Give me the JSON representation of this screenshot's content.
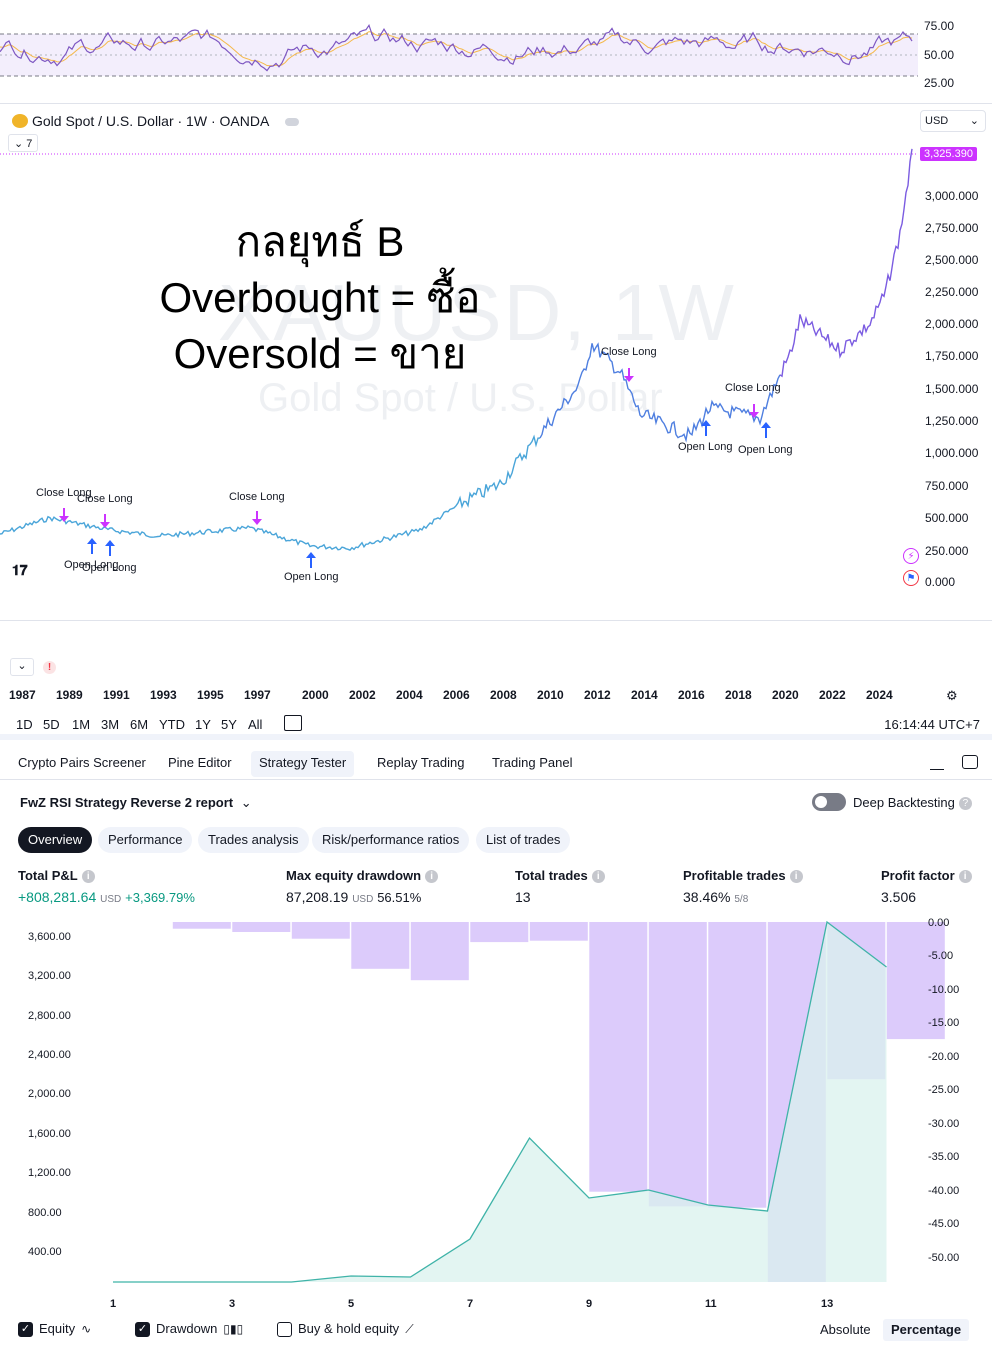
{
  "rsi": {
    "ticks": [
      "75.00",
      "50.00",
      "25.00"
    ]
  },
  "symbol": {
    "title": "Gold Spot / U.S. Dollar · 1W · OANDA",
    "currency": "USD",
    "indicators_count": "7"
  },
  "watermark": {
    "line1": "XAUUSD, 1W",
    "line2": "Gold Spot / U.S. Dollar"
  },
  "overlay": {
    "line1": "กลยุทธ์ B",
    "line2": "Overbought = ซื้อ",
    "line3": "Oversold = ขาย"
  },
  "price_axis": {
    "last_price": "3,325.390",
    "ticks": [
      "3,000.000",
      "2,750.000",
      "2,500.000",
      "2,250.000",
      "2,000.000",
      "1,750.000",
      "1,500.000",
      "1,250.000",
      "1,000.000",
      "750.000",
      "500.000",
      "250.000",
      "0.000"
    ]
  },
  "trade_labels": [
    "Close Long",
    "Close Long",
    "Close Long",
    "Close Long",
    "Close Long",
    "Open Long",
    "Open Long",
    "Open Long",
    "Open Long",
    "Open Long"
  ],
  "time_axis": {
    "years": [
      "1987",
      "1989",
      "1991",
      "1993",
      "1995",
      "1997",
      "2000",
      "2002",
      "2004",
      "2006",
      "2008",
      "2010",
      "2012",
      "2014",
      "2016",
      "2018",
      "2020",
      "2022",
      "2024"
    ]
  },
  "range_buttons": [
    "1D",
    "5D",
    "1M",
    "3M",
    "6M",
    "YTD",
    "1Y",
    "5Y",
    "All"
  ],
  "clock": "16:14:44 UTC+7",
  "bottom_tabs": [
    "Crypto Pairs Screener",
    "Pine Editor",
    "Strategy Tester",
    "Replay Trading",
    "Trading Panel"
  ],
  "report": {
    "title": "FwZ RSI Strategy Reverse 2 report",
    "deep_backtesting": "Deep Backtesting",
    "tabs": [
      "Overview",
      "Performance",
      "Trades analysis",
      "Risk/performance ratios",
      "List of trades"
    ]
  },
  "stats": {
    "total_pnl": {
      "title": "Total P&L",
      "value": "+808,281.64",
      "unit": "USD",
      "pct": "+3,369.79%"
    },
    "max_drawdown": {
      "title": "Max equity drawdown",
      "value": "87,208.19",
      "unit": "USD",
      "pct": "56.51%"
    },
    "total_trades": {
      "title": "Total trades",
      "value": "13"
    },
    "profitable": {
      "title": "Profitable trades",
      "value": "38.46%",
      "ratio": "5/8"
    },
    "profit_factor": {
      "title": "Profit factor",
      "value": "3.506"
    }
  },
  "perf_chart": {
    "left_ticks": [
      "3,600.00",
      "3,200.00",
      "2,800.00",
      "2,400.00",
      "2,000.00",
      "1,600.00",
      "1,200.00",
      "800.00",
      "400.00"
    ],
    "right_ticks": [
      "0.00",
      "-5.00",
      "-10.00",
      "-15.00",
      "-20.00",
      "-25.00",
      "-30.00",
      "-35.00",
      "-40.00",
      "-45.00",
      "-50.00"
    ],
    "x_ticks": [
      "1",
      "3",
      "5",
      "7",
      "9",
      "11",
      "13"
    ]
  },
  "chart_data": {
    "type": "bar",
    "categories": [
      "1",
      "2",
      "3",
      "4",
      "5",
      "6",
      "7",
      "8",
      "9",
      "10",
      "11",
      "12",
      "13",
      "14"
    ],
    "series": [
      {
        "name": "Drawdown",
        "values": [
          0,
          -1,
          -1.5,
          -2.5,
          -7,
          -8.7,
          -3,
          -2.8,
          -40.3,
          -42.5,
          -42.7,
          -53.8,
          -23.5,
          -17.5
        ]
      },
      {
        "name": "Equity",
        "values": [
          0,
          0,
          0,
          0,
          60,
          50,
          430,
          1440,
          840,
          920,
          770,
          710,
          3600,
          3150
        ]
      }
    ],
    "ylim_left": [
      0,
      3600
    ],
    "ylim_right": [
      -53.8,
      0
    ]
  },
  "legend": {
    "equity": "Equity",
    "drawdown": "Drawdown",
    "buy_hold": "Buy & hold equity",
    "absolute": "Absolute",
    "percentage": "Percentage"
  },
  "colors": {
    "accent": "#cc33ff",
    "price_line_early": "#4aa5d9",
    "price_line_late": "#7b5ce1",
    "drawdown_bar": "#dccbfb",
    "equity_fill": "#d9f2ee",
    "equity_line": "#3fb3a8",
    "positive": "#089981"
  }
}
